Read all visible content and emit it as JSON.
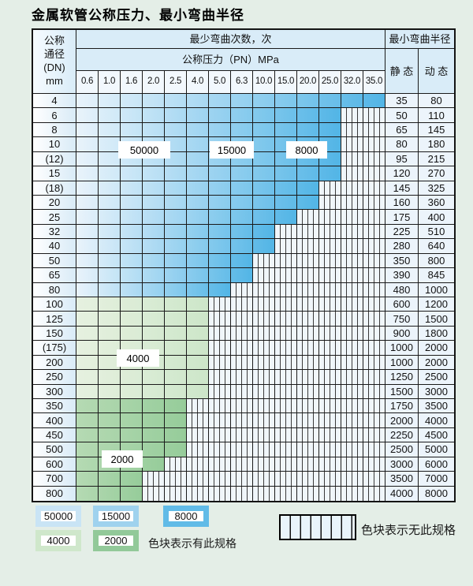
{
  "title": "金属软管公称压力、最小弯曲半径",
  "header": {
    "dn_lines": [
      "公称",
      "通径",
      "(DN)",
      "mm"
    ],
    "bend_times": "最少弯曲次数，次",
    "pressure": "公称压力（PN）MPa",
    "radius": "最小弯曲半径",
    "static_label": "静 态",
    "dynamic_label": "动 态"
  },
  "pressure_columns": [
    "0.6",
    "1.0",
    "1.6",
    "2.0",
    "2.5",
    "4.0",
    "5.0",
    "6.3",
    "10.0",
    "15.0",
    "20.0",
    "25.0",
    "32.0",
    "35.0"
  ],
  "rows": [
    {
      "dn": "4",
      "colored": 14,
      "palette": "blue",
      "static": "35",
      "dynamic": "80"
    },
    {
      "dn": "6",
      "colored": 12,
      "palette": "blue",
      "static": "50",
      "dynamic": "110"
    },
    {
      "dn": "8",
      "colored": 12,
      "palette": "blue",
      "static": "65",
      "dynamic": "145"
    },
    {
      "dn": "10",
      "colored": 12,
      "palette": "blue",
      "static": "80",
      "dynamic": "180"
    },
    {
      "dn": "(12)",
      "colored": 12,
      "palette": "blue",
      "static": "95",
      "dynamic": "215"
    },
    {
      "dn": "15",
      "colored": 12,
      "palette": "blue",
      "static": "120",
      "dynamic": "270"
    },
    {
      "dn": "(18)",
      "colored": 11,
      "palette": "blue",
      "static": "145",
      "dynamic": "325"
    },
    {
      "dn": "20",
      "colored": 11,
      "palette": "blue",
      "static": "160",
      "dynamic": "360"
    },
    {
      "dn": "25",
      "colored": 10,
      "palette": "blue",
      "static": "175",
      "dynamic": "400"
    },
    {
      "dn": "32",
      "colored": 9,
      "palette": "blue",
      "static": "225",
      "dynamic": "510"
    },
    {
      "dn": "40",
      "colored": 9,
      "palette": "blue",
      "static": "280",
      "dynamic": "640"
    },
    {
      "dn": "50",
      "colored": 8,
      "palette": "blue",
      "static": "350",
      "dynamic": "800"
    },
    {
      "dn": "65",
      "colored": 8,
      "palette": "blue",
      "static": "390",
      "dynamic": "845"
    },
    {
      "dn": "80",
      "colored": 7,
      "palette": "blue",
      "static": "480",
      "dynamic": "1000"
    },
    {
      "dn": "100",
      "colored": 6,
      "palette": "green_light",
      "static": "600",
      "dynamic": "1200"
    },
    {
      "dn": "125",
      "colored": 6,
      "palette": "green_light",
      "static": "750",
      "dynamic": "1500"
    },
    {
      "dn": "150",
      "colored": 6,
      "palette": "green_light",
      "static": "900",
      "dynamic": "1800"
    },
    {
      "dn": "(175)",
      "colored": 6,
      "palette": "green_light",
      "static": "1000",
      "dynamic": "2000"
    },
    {
      "dn": "200",
      "colored": 6,
      "palette": "green_light",
      "static": "1000",
      "dynamic": "2000"
    },
    {
      "dn": "250",
      "colored": 6,
      "palette": "green_light",
      "static": "1250",
      "dynamic": "2500"
    },
    {
      "dn": "300",
      "colored": 6,
      "palette": "green_light",
      "static": "1500",
      "dynamic": "3000"
    },
    {
      "dn": "350",
      "colored": 5,
      "palette": "green_dark",
      "static": "1750",
      "dynamic": "3500"
    },
    {
      "dn": "400",
      "colored": 5,
      "palette": "green_dark",
      "static": "2000",
      "dynamic": "4000"
    },
    {
      "dn": "450",
      "colored": 5,
      "palette": "green_dark",
      "static": "2250",
      "dynamic": "4500"
    },
    {
      "dn": "500",
      "colored": 5,
      "palette": "green_dark",
      "static": "2500",
      "dynamic": "5000"
    },
    {
      "dn": "600",
      "colored": 4,
      "palette": "green_dark",
      "static": "3000",
      "dynamic": "6000"
    },
    {
      "dn": "700",
      "colored": 3,
      "palette": "green_dark",
      "static": "3500",
      "dynamic": "7000"
    },
    {
      "dn": "800",
      "colored": 3,
      "palette": "green_dark",
      "static": "4000",
      "dynamic": "8000"
    }
  ],
  "zone_overlays": [
    "50000",
    "15000",
    "8000",
    "4000",
    "2000"
  ],
  "legend": {
    "items": [
      {
        "label": "50000",
        "color": "#c9e4f5"
      },
      {
        "label": "15000",
        "color": "#9fd2ee"
      },
      {
        "label": "8000",
        "color": "#61bbe7"
      },
      {
        "label": "4000",
        "color": "#cfe7cb"
      },
      {
        "label": "2000",
        "color": "#92c999"
      }
    ],
    "has_spec": "色块表示有此规格",
    "no_spec": "色块表示无此规格"
  },
  "colors": {
    "page_bg": "#e4eee7",
    "blue_start": "#e9f3fb",
    "blue_end": "#52b5e6",
    "green_light_start": "#e6f1e0",
    "green_light_end": "#cde6c9",
    "green_dark_start": "#b5dab3",
    "green_dark_end": "#96cc9a",
    "stripe_bg": "#f0f6fa"
  }
}
